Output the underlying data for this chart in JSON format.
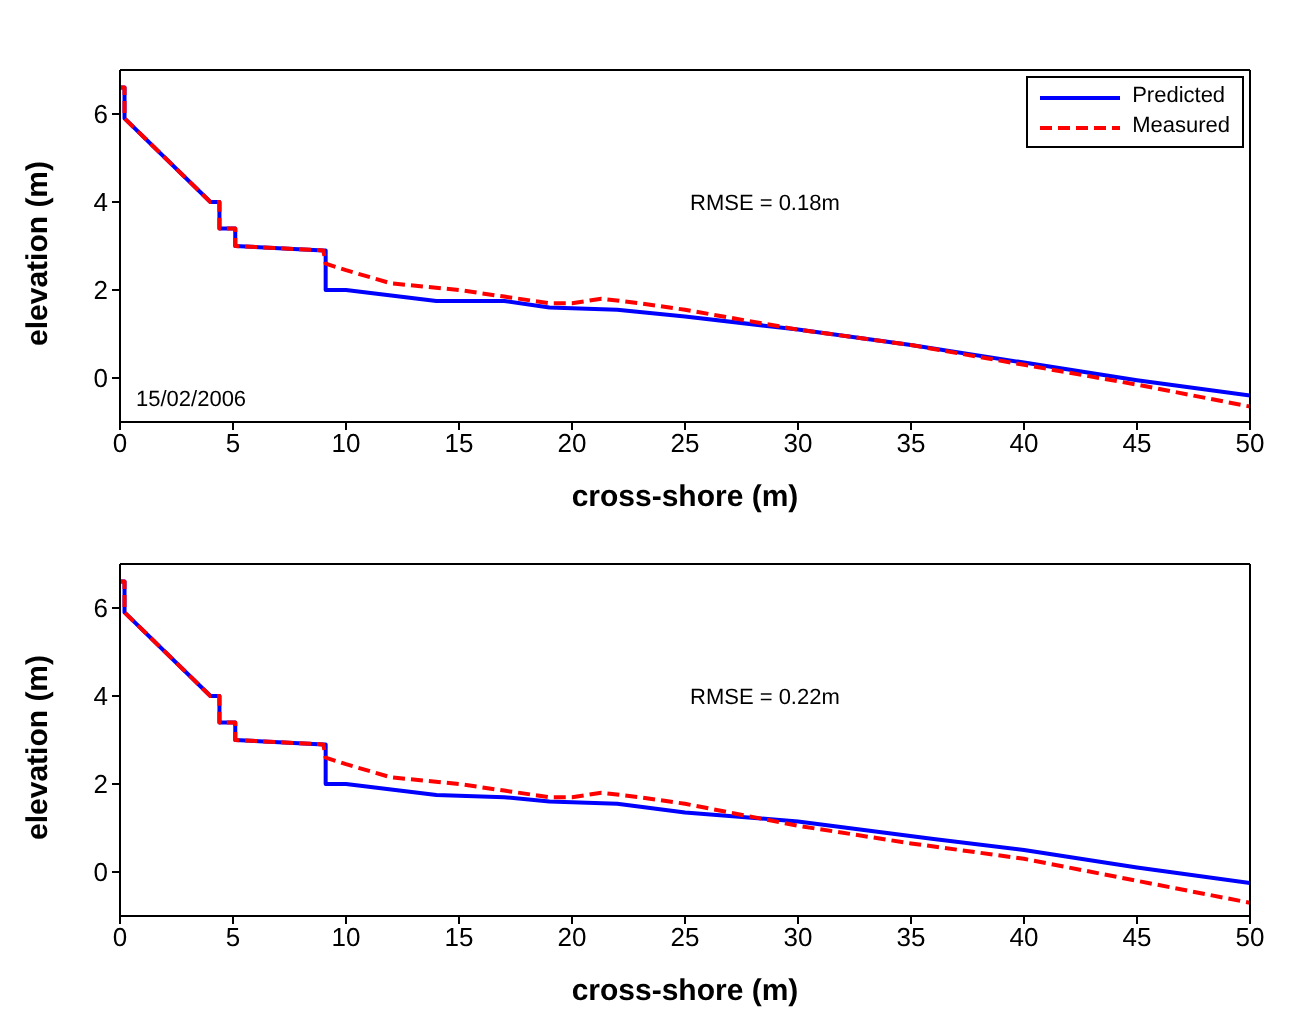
{
  "chart_data": [
    {
      "type": "line",
      "xlabel": "cross-shore (m)",
      "ylabel": "elevation (m)",
      "xlim": [
        0,
        50
      ],
      "xticks": [
        0,
        5,
        10,
        15,
        20,
        25,
        30,
        35,
        40,
        45,
        50
      ],
      "ylim": [
        -1,
        7
      ],
      "yticks": [
        0,
        2,
        4,
        6
      ],
      "legend": "top right",
      "annotations": [
        "RMSE = 0.18m",
        "15/02/2006"
      ],
      "series": [
        {
          "name": "Predicted",
          "color": "#0000ff",
          "line_style": "solid",
          "x": [
            0,
            0.2,
            0.2,
            4,
            4.4,
            4.4,
            5.1,
            5.1,
            9,
            9.1,
            9.1,
            10,
            14,
            17,
            19,
            22,
            25,
            30,
            35,
            40,
            45,
            50
          ],
          "values": [
            6.6,
            6.6,
            5.9,
            4,
            4,
            3.4,
            3.4,
            3.0,
            2.9,
            2.9,
            2.0,
            2.0,
            1.75,
            1.75,
            1.6,
            1.55,
            1.4,
            1.1,
            0.75,
            0.35,
            -0.05,
            -0.4
          ]
        },
        {
          "name": "Measured",
          "color": "#ff0000",
          "line_style": "dashed",
          "x": [
            0,
            0.2,
            0.2,
            4,
            4.4,
            4.4,
            5.1,
            5.1,
            9,
            9.1,
            10,
            12,
            15,
            17,
            19,
            20,
            21.3,
            23,
            25,
            30,
            35,
            40,
            45,
            50
          ],
          "values": [
            6.6,
            6.6,
            5.9,
            4,
            4,
            3.4,
            3.4,
            3.0,
            2.9,
            2.6,
            2.45,
            2.15,
            2.0,
            1.85,
            1.7,
            1.7,
            1.8,
            1.7,
            1.55,
            1.1,
            0.75,
            0.3,
            -0.15,
            -0.65
          ]
        }
      ]
    },
    {
      "type": "line",
      "xlabel": "cross-shore (m)",
      "ylabel": "elevation (m)",
      "xlim": [
        0,
        50
      ],
      "xticks": [
        0,
        5,
        10,
        15,
        20,
        25,
        30,
        35,
        40,
        45,
        50
      ],
      "ylim": [
        -1,
        7
      ],
      "yticks": [
        0,
        2,
        4,
        6
      ],
      "legend": false,
      "annotations": [
        "RMSE = 0.22m"
      ],
      "series": [
        {
          "color": "#0000ff",
          "line_style": "solid",
          "x": [
            0,
            0.2,
            0.2,
            4,
            4.4,
            4.4,
            5.1,
            5.1,
            9,
            9.1,
            9.1,
            10,
            14,
            17,
            19,
            22,
            25,
            30,
            36,
            40,
            45,
            50
          ],
          "values": [
            6.6,
            6.6,
            5.9,
            4,
            4,
            3.4,
            3.4,
            3.0,
            2.9,
            2.9,
            2.0,
            2.0,
            1.75,
            1.7,
            1.6,
            1.55,
            1.35,
            1.15,
            0.75,
            0.5,
            0.1,
            -0.25
          ]
        },
        {
          "color": "#ff0000",
          "line_style": "dashed",
          "x": [
            0,
            0.2,
            0.2,
            4,
            4.4,
            4.4,
            5.1,
            5.1,
            9,
            9.1,
            10,
            12,
            15,
            17,
            19,
            20,
            21.3,
            23,
            25,
            30,
            35,
            40,
            45,
            50
          ],
          "values": [
            6.6,
            6.6,
            5.9,
            4,
            4,
            3.4,
            3.4,
            3.0,
            2.9,
            2.6,
            2.45,
            2.15,
            2.0,
            1.85,
            1.7,
            1.7,
            1.8,
            1.7,
            1.55,
            1.05,
            0.65,
            0.3,
            -0.2,
            -0.7
          ]
        }
      ]
    }
  ]
}
